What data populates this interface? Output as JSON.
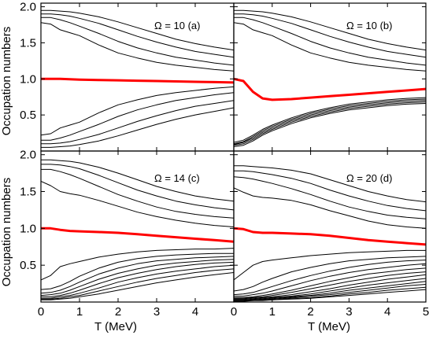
{
  "chart_data": {
    "type": "line",
    "shared_xlabel": "T (MeV)",
    "shared_ylabel": "Occupation numbers",
    "xlim": [
      0,
      5
    ],
    "ylim": [
      0,
      2.05
    ],
    "x_ticks": [
      0,
      1,
      2,
      3,
      4,
      5
    ],
    "y_ticks": [
      0.5,
      1.0,
      1.5,
      2.0
    ],
    "y_tick_labels": [
      "0.5",
      "1.0",
      "1.5",
      "2.0"
    ],
    "highlight_color": "#ff0000",
    "line_color": "#000000",
    "x": [
      0,
      0.25,
      0.5,
      0.75,
      1,
      1.5,
      2,
      2.5,
      3,
      3.5,
      4,
      4.5,
      5
    ],
    "panels": [
      {
        "label": "Ω = 10  (a)",
        "highlight": [
          1.0,
          1.0,
          1.0,
          0.995,
          0.99,
          0.985,
          0.98,
          0.975,
          0.97,
          0.965,
          0.96,
          0.955,
          0.95
        ],
        "curves": [
          [
            1.95,
            1.95,
            1.94,
            1.93,
            1.91,
            1.86,
            1.79,
            1.71,
            1.63,
            1.55,
            1.49,
            1.44,
            1.4
          ],
          [
            1.9,
            1.9,
            1.89,
            1.87,
            1.84,
            1.77,
            1.68,
            1.59,
            1.51,
            1.44,
            1.38,
            1.34,
            1.3
          ],
          [
            1.85,
            1.85,
            1.82,
            1.78,
            1.73,
            1.63,
            1.52,
            1.43,
            1.36,
            1.3,
            1.26,
            1.22,
            1.19
          ],
          [
            1.78,
            1.76,
            1.68,
            1.64,
            1.6,
            1.47,
            1.36,
            1.29,
            1.23,
            1.19,
            1.16,
            1.13,
            1.11
          ],
          [
            0.22,
            0.24,
            0.32,
            0.36,
            0.4,
            0.53,
            0.64,
            0.71,
            0.77,
            0.81,
            0.84,
            0.87,
            0.89
          ],
          [
            0.15,
            0.15,
            0.18,
            0.22,
            0.27,
            0.37,
            0.48,
            0.57,
            0.64,
            0.7,
            0.74,
            0.78,
            0.81
          ],
          [
            0.1,
            0.1,
            0.11,
            0.13,
            0.16,
            0.23,
            0.32,
            0.41,
            0.49,
            0.56,
            0.62,
            0.66,
            0.7
          ],
          [
            0.05,
            0.05,
            0.06,
            0.07,
            0.09,
            0.14,
            0.21,
            0.29,
            0.37,
            0.44,
            0.5,
            0.55,
            0.6
          ]
        ]
      },
      {
        "label": "Ω = 10  (b)",
        "highlight": [
          1.0,
          0.97,
          0.82,
          0.73,
          0.71,
          0.72,
          0.74,
          0.76,
          0.78,
          0.8,
          0.82,
          0.84,
          0.86
        ],
        "curves": [
          [
            1.95,
            1.95,
            1.94,
            1.93,
            1.91,
            1.86,
            1.79,
            1.71,
            1.63,
            1.55,
            1.49,
            1.44,
            1.4
          ],
          [
            1.9,
            1.9,
            1.89,
            1.87,
            1.84,
            1.77,
            1.68,
            1.59,
            1.51,
            1.44,
            1.38,
            1.34,
            1.3
          ],
          [
            1.85,
            1.85,
            1.82,
            1.78,
            1.73,
            1.63,
            1.52,
            1.43,
            1.36,
            1.3,
            1.26,
            1.22,
            1.19
          ],
          [
            1.78,
            1.76,
            1.68,
            1.64,
            1.6,
            1.47,
            1.36,
            1.29,
            1.23,
            1.19,
            1.16,
            1.13,
            1.11
          ],
          [
            0.12,
            0.15,
            0.22,
            0.3,
            0.36,
            0.46,
            0.54,
            0.6,
            0.65,
            0.68,
            0.71,
            0.73,
            0.74
          ],
          [
            0.1,
            0.13,
            0.2,
            0.28,
            0.34,
            0.44,
            0.52,
            0.58,
            0.63,
            0.66,
            0.69,
            0.71,
            0.72
          ],
          [
            0.09,
            0.12,
            0.18,
            0.26,
            0.32,
            0.42,
            0.5,
            0.56,
            0.61,
            0.64,
            0.67,
            0.69,
            0.7
          ],
          [
            0.08,
            0.1,
            0.16,
            0.24,
            0.3,
            0.4,
            0.48,
            0.54,
            0.59,
            0.62,
            0.65,
            0.67,
            0.68
          ],
          [
            0.06,
            0.08,
            0.14,
            0.22,
            0.28,
            0.38,
            0.46,
            0.52,
            0.57,
            0.6,
            0.63,
            0.65,
            0.66
          ]
        ]
      },
      {
        "label": "Ω = 14  (c)",
        "highlight": [
          1.0,
          1.0,
          0.98,
          0.965,
          0.96,
          0.95,
          0.94,
          0.92,
          0.9,
          0.88,
          0.86,
          0.84,
          0.82
        ],
        "curves": [
          [
            1.93,
            1.93,
            1.92,
            1.91,
            1.89,
            1.83,
            1.75,
            1.66,
            1.57,
            1.5,
            1.44,
            1.4,
            1.37
          ],
          [
            1.87,
            1.87,
            1.86,
            1.84,
            1.81,
            1.72,
            1.62,
            1.52,
            1.44,
            1.37,
            1.32,
            1.28,
            1.25
          ],
          [
            1.8,
            1.8,
            1.77,
            1.73,
            1.68,
            1.57,
            1.46,
            1.37,
            1.29,
            1.23,
            1.19,
            1.16,
            1.14
          ],
          [
            1.64,
            1.58,
            1.5,
            1.47,
            1.45,
            1.38,
            1.3,
            1.22,
            1.16,
            1.11,
            1.07,
            1.04,
            1.02
          ],
          [
            0.3,
            0.36,
            0.48,
            0.52,
            0.55,
            0.61,
            0.65,
            0.68,
            0.7,
            0.71,
            0.72,
            0.72,
            0.73
          ],
          [
            0.17,
            0.18,
            0.22,
            0.28,
            0.35,
            0.46,
            0.54,
            0.59,
            0.62,
            0.64,
            0.65,
            0.66,
            0.66
          ],
          [
            0.12,
            0.13,
            0.16,
            0.21,
            0.27,
            0.38,
            0.46,
            0.52,
            0.56,
            0.58,
            0.6,
            0.61,
            0.62
          ],
          [
            0.09,
            0.1,
            0.12,
            0.16,
            0.21,
            0.31,
            0.39,
            0.45,
            0.5,
            0.53,
            0.55,
            0.57,
            0.58
          ],
          [
            0.07,
            0.07,
            0.09,
            0.12,
            0.16,
            0.25,
            0.33,
            0.39,
            0.44,
            0.48,
            0.51,
            0.53,
            0.54
          ],
          [
            0.05,
            0.05,
            0.07,
            0.09,
            0.12,
            0.19,
            0.27,
            0.33,
            0.38,
            0.42,
            0.45,
            0.48,
            0.5
          ],
          [
            0.04,
            0.04,
            0.05,
            0.07,
            0.09,
            0.15,
            0.21,
            0.27,
            0.32,
            0.36,
            0.4,
            0.43,
            0.45
          ],
          [
            0.03,
            0.03,
            0.04,
            0.05,
            0.07,
            0.11,
            0.16,
            0.21,
            0.26,
            0.3,
            0.34,
            0.37,
            0.4
          ]
        ]
      },
      {
        "label": "Ω = 20  (d)",
        "highlight": [
          1.0,
          0.99,
          0.95,
          0.94,
          0.94,
          0.93,
          0.92,
          0.9,
          0.87,
          0.84,
          0.82,
          0.8,
          0.78
        ],
        "curves": [
          [
            1.85,
            1.85,
            1.84,
            1.83,
            1.82,
            1.79,
            1.74,
            1.66,
            1.58,
            1.5,
            1.44,
            1.39,
            1.36
          ],
          [
            1.78,
            1.78,
            1.77,
            1.75,
            1.73,
            1.68,
            1.61,
            1.52,
            1.44,
            1.37,
            1.31,
            1.27,
            1.24
          ],
          [
            1.7,
            1.69,
            1.67,
            1.64,
            1.61,
            1.54,
            1.46,
            1.37,
            1.29,
            1.23,
            1.18,
            1.15,
            1.13
          ],
          [
            1.55,
            1.49,
            1.44,
            1.42,
            1.41,
            1.38,
            1.32,
            1.24,
            1.17,
            1.1,
            1.05,
            1.02,
            1.0
          ],
          [
            0.3,
            0.4,
            0.5,
            0.55,
            0.57,
            0.6,
            0.63,
            0.65,
            0.67,
            0.68,
            0.69,
            0.7,
            0.7
          ],
          [
            0.15,
            0.17,
            0.21,
            0.27,
            0.32,
            0.41,
            0.47,
            0.52,
            0.56,
            0.58,
            0.6,
            0.61,
            0.62
          ],
          [
            0.1,
            0.11,
            0.13,
            0.17,
            0.21,
            0.29,
            0.36,
            0.42,
            0.47,
            0.51,
            0.54,
            0.56,
            0.57
          ],
          [
            0.08,
            0.08,
            0.1,
            0.12,
            0.15,
            0.22,
            0.29,
            0.35,
            0.4,
            0.44,
            0.47,
            0.5,
            0.52
          ],
          [
            0.06,
            0.06,
            0.07,
            0.09,
            0.11,
            0.16,
            0.22,
            0.28,
            0.33,
            0.38,
            0.41,
            0.44,
            0.46
          ],
          [
            0.05,
            0.05,
            0.06,
            0.07,
            0.09,
            0.13,
            0.18,
            0.23,
            0.28,
            0.32,
            0.36,
            0.39,
            0.41
          ],
          [
            0.04,
            0.04,
            0.05,
            0.06,
            0.07,
            0.1,
            0.14,
            0.18,
            0.23,
            0.27,
            0.31,
            0.34,
            0.37
          ],
          [
            0.03,
            0.03,
            0.04,
            0.05,
            0.06,
            0.08,
            0.11,
            0.15,
            0.19,
            0.23,
            0.26,
            0.29,
            0.32
          ],
          [
            0.03,
            0.03,
            0.03,
            0.04,
            0.05,
            0.07,
            0.09,
            0.12,
            0.16,
            0.19,
            0.22,
            0.25,
            0.28
          ],
          [
            0.02,
            0.02,
            0.03,
            0.03,
            0.04,
            0.06,
            0.08,
            0.1,
            0.13,
            0.16,
            0.19,
            0.22,
            0.24
          ],
          [
            0.02,
            0.02,
            0.02,
            0.03,
            0.03,
            0.05,
            0.06,
            0.08,
            0.11,
            0.13,
            0.16,
            0.18,
            0.2
          ],
          [
            0.01,
            0.01,
            0.02,
            0.02,
            0.03,
            0.04,
            0.05,
            0.07,
            0.09,
            0.11,
            0.13,
            0.15,
            0.17
          ]
        ]
      }
    ]
  }
}
